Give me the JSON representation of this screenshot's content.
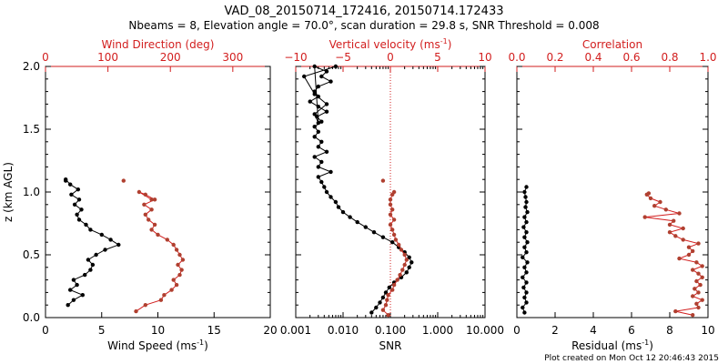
{
  "title_line1": "VAD_08_20150714_172416, 20150714.172433",
  "title_line2": "Nbeams = 8, Elevation angle = 70.0°, scan duration = 29.8 s, SNR Threshold = 0.008",
  "footer": "Plot created on Mon Oct 12 20:46:43 2015",
  "colors": {
    "primary": "#000000",
    "accent": "#d21e1e",
    "accent_marker": "#b04030"
  },
  "chart_data": [
    {
      "type": "line",
      "ylabel": "z (km AGL)",
      "ylim": [
        0.0,
        2.0
      ],
      "yticks": [
        "0.0",
        "0.5",
        "1.0",
        "1.5",
        "2.0"
      ],
      "bottom_axis": {
        "label": "Wind Speed (ms",
        "label_sup": "-1",
        "label_end": ")",
        "lim": [
          0,
          20
        ],
        "ticks": [
          "0",
          "5",
          "10",
          "15",
          "20"
        ]
      },
      "top_axis": {
        "label": "Wind Direction (deg)",
        "lim": [
          0,
          360
        ],
        "ticks": [
          "0",
          "100",
          "200",
          "300"
        ]
      },
      "series": [
        {
          "axis": "bottom",
          "color": "black",
          "connected": true,
          "x": [
            2.0,
            2.5,
            3.3,
            2.2,
            2.8,
            2.5,
            3.5,
            4.0,
            4.2,
            3.8,
            4.5,
            5.3,
            6.5,
            5.8,
            5.0,
            4.0,
            3.6,
            3.0,
            2.8,
            3.2,
            2.6,
            3.0,
            2.3,
            2.9,
            2.2,
            1.8
          ],
          "y": [
            0.1,
            0.14,
            0.18,
            0.22,
            0.26,
            0.3,
            0.34,
            0.38,
            0.42,
            0.46,
            0.5,
            0.54,
            0.58,
            0.62,
            0.66,
            0.7,
            0.74,
            0.78,
            0.82,
            0.86,
            0.9,
            0.94,
            0.98,
            1.02,
            1.06,
            1.1
          ]
        },
        {
          "axis": "top",
          "color": "red",
          "connected": true,
          "x": [
            145,
            160,
            185,
            190,
            202,
            210,
            205,
            215,
            218,
            212,
            220,
            215,
            210,
            205,
            195,
            180,
            170,
            175,
            165,
            160,
            170,
            158,
            175,
            160,
            150,
            170
          ],
          "y": [
            0.05,
            0.1,
            0.14,
            0.18,
            0.22,
            0.26,
            0.3,
            0.34,
            0.38,
            0.42,
            0.46,
            0.5,
            0.54,
            0.58,
            0.62,
            0.66,
            0.7,
            0.74,
            0.78,
            0.82,
            0.86,
            0.9,
            0.94,
            0.98,
            1.0,
            0.94
          ]
        },
        {
          "axis": "top",
          "color": "red",
          "connected": false,
          "x": [
            125
          ],
          "y": [
            1.09
          ]
        },
        {
          "axis": "bottom",
          "color": "black",
          "connected": false,
          "x": [
            1.8
          ],
          "y": [
            1.09
          ]
        }
      ]
    },
    {
      "type": "line",
      "bottom_axis": {
        "label": "SNR",
        "scale": "log",
        "lim": [
          0.001,
          10
        ],
        "ticks": [
          "0.001",
          "0.010",
          "0.100",
          "1.000",
          "10.000"
        ]
      },
      "top_axis": {
        "label": "Vertical velocity (ms",
        "label_sup": "-1",
        "label_end": ")",
        "lim": [
          -10,
          10
        ],
        "ticks": [
          "−10",
          "−5",
          "0",
          "5",
          "10"
        ]
      },
      "reference_line": {
        "axis": "top",
        "value": 0,
        "style": "dotted"
      },
      "series": [
        {
          "axis": "bottom",
          "color": "black",
          "connected": true,
          "x": [
            0.04,
            0.05,
            0.06,
            0.07,
            0.08,
            0.095,
            0.12,
            0.17,
            0.22,
            0.25,
            0.28,
            0.25,
            0.2,
            0.15,
            0.11,
            0.07,
            0.045,
            0.03,
            0.02,
            0.014,
            0.01,
            0.008,
            0.007,
            0.0055,
            0.0045,
            0.004,
            0.0035,
            0.003,
            0.0055,
            0.003,
            0.0035,
            0.0025,
            0.0045,
            0.003,
            0.0035,
            0.0025,
            0.003,
            0.0025,
            0.0035,
            0.0028,
            0.0045,
            0.003,
            0.002,
            0.003,
            0.0025,
            0.003,
            0.0055,
            0.0035,
            0.0045,
            0.0025,
            0.003,
            0.0025,
            0.0045,
            0.0025,
            0.0015,
            0.007
          ],
          "y": [
            0.04,
            0.08,
            0.12,
            0.16,
            0.2,
            0.24,
            0.28,
            0.32,
            0.36,
            0.4,
            0.44,
            0.48,
            0.52,
            0.56,
            0.6,
            0.64,
            0.68,
            0.72,
            0.76,
            0.8,
            0.84,
            0.88,
            0.92,
            0.96,
            1.0,
            1.04,
            1.08,
            1.12,
            1.16,
            1.2,
            1.24,
            1.28,
            1.32,
            1.36,
            1.4,
            1.44,
            1.48,
            1.52,
            1.56,
            1.6,
            1.64,
            1.68,
            1.72,
            1.76,
            1.8,
            1.84,
            1.88,
            1.92,
            1.96,
            2.0,
            1.55,
            1.62,
            1.7,
            1.78,
            1.92,
            2.0
          ]
        },
        {
          "axis": "bottom",
          "color": "red",
          "connected": true,
          "x": [
            0.09,
            0.07,
            0.08,
            0.085,
            0.09,
            0.11,
            0.12,
            0.14,
            0.16,
            0.18,
            0.2,
            0.22,
            0.2,
            0.17,
            0.15,
            0.13,
            0.12,
            0.11,
            0.1,
            0.12,
            0.1,
            0.11,
            0.1,
            0.1,
            0.11,
            0.12
          ],
          "y": [
            0.02,
            0.06,
            0.1,
            0.14,
            0.18,
            0.22,
            0.26,
            0.3,
            0.34,
            0.38,
            0.42,
            0.46,
            0.5,
            0.54,
            0.58,
            0.62,
            0.66,
            0.7,
            0.74,
            0.78,
            0.82,
            0.86,
            0.9,
            0.94,
            0.98,
            1.0
          ]
        },
        {
          "axis": "bottom",
          "color": "red",
          "connected": false,
          "x": [
            0.07
          ],
          "y": [
            1.09
          ]
        }
      ]
    },
    {
      "type": "line",
      "bottom_axis": {
        "label": "Residual (ms",
        "label_sup": "-1",
        "label_end": ")",
        "lim": [
          0,
          10
        ],
        "ticks": [
          "0",
          "2",
          "4",
          "6",
          "8",
          "10"
        ]
      },
      "top_axis": {
        "label": "Correlation",
        "lim": [
          0.0,
          1.0
        ],
        "ticks": [
          "0.0",
          "0.2",
          "0.4",
          "0.6",
          "0.8",
          "1.0"
        ]
      },
      "series": [
        {
          "axis": "bottom",
          "color": "black",
          "connected": true,
          "x": [
            0.4,
            0.3,
            0.5,
            0.4,
            0.5,
            0.35,
            0.5,
            0.3,
            0.5,
            0.4,
            0.55,
            0.3,
            0.5,
            0.4,
            0.55,
            0.4,
            0.5,
            0.35,
            0.5,
            0.4,
            0.55,
            0.45,
            0.5,
            0.45,
            0.4,
            0.5
          ],
          "y": [
            0.04,
            0.08,
            0.12,
            0.16,
            0.2,
            0.24,
            0.28,
            0.32,
            0.36,
            0.4,
            0.44,
            0.48,
            0.52,
            0.56,
            0.6,
            0.64,
            0.68,
            0.72,
            0.76,
            0.8,
            0.84,
            0.88,
            0.92,
            0.96,
            1.0,
            1.04
          ]
        },
        {
          "axis": "top",
          "color": "red",
          "connected": true,
          "x": [
            0.92,
            0.83,
            0.95,
            0.94,
            0.97,
            0.92,
            0.95,
            0.93,
            0.96,
            0.94,
            0.97,
            0.95,
            0.92,
            0.97,
            0.94,
            0.85,
            0.9,
            0.92,
            0.9,
            0.95,
            0.87,
            0.83,
            0.8,
            0.87,
            0.8,
            0.82,
            0.67,
            0.85,
            0.78,
            0.72,
            0.75,
            0.7,
            0.68
          ],
          "y": [
            0.02,
            0.05,
            0.08,
            0.11,
            0.14,
            0.17,
            0.2,
            0.23,
            0.26,
            0.29,
            0.32,
            0.35,
            0.38,
            0.41,
            0.44,
            0.47,
            0.5,
            0.53,
            0.56,
            0.59,
            0.62,
            0.65,
            0.68,
            0.71,
            0.74,
            0.77,
            0.8,
            0.83,
            0.86,
            0.89,
            0.92,
            0.95,
            0.98
          ]
        },
        {
          "axis": "top",
          "color": "red",
          "connected": false,
          "x": [
            0.69
          ],
          "y": [
            0.99
          ]
        }
      ]
    }
  ]
}
